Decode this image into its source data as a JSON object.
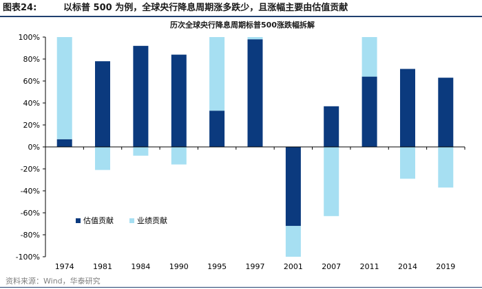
{
  "header": {
    "figure_no": "图表24:",
    "title": "以标普 500 为例，全球央行降息周期涨多跌少，且涨幅主要由估值贡献"
  },
  "source": "资料来源：Wind，华泰研究",
  "colors": {
    "valuation": "#0b3a7e",
    "earnings": "#a6dff2",
    "header_rule": "#1f3f6e",
    "axis": "#000000"
  },
  "chart_data": {
    "type": "bar",
    "stacked": true,
    "title": "历次全球央行降息周期标普500涨跌幅拆解",
    "categories": [
      "1974",
      "1981",
      "1984",
      "1990",
      "1995",
      "1997",
      "2001",
      "2007",
      "2011",
      "2014",
      "2019"
    ],
    "series": [
      {
        "name": "估值贡献",
        "values": [
          7,
          78,
          92,
          84,
          33,
          98,
          -72,
          37,
          64,
          71,
          63
        ]
      },
      {
        "name": "业绩贡献",
        "values": [
          93,
          -21,
          -8,
          -16,
          67,
          2,
          -28,
          -63,
          36,
          -29,
          -37
        ]
      }
    ],
    "ylim": [
      -100,
      100
    ],
    "yticks": [
      -100,
      -80,
      -60,
      -40,
      -20,
      0,
      20,
      40,
      60,
      80,
      100
    ],
    "ytick_format": "percent",
    "legend_position": "bottom-left",
    "grid": false
  }
}
